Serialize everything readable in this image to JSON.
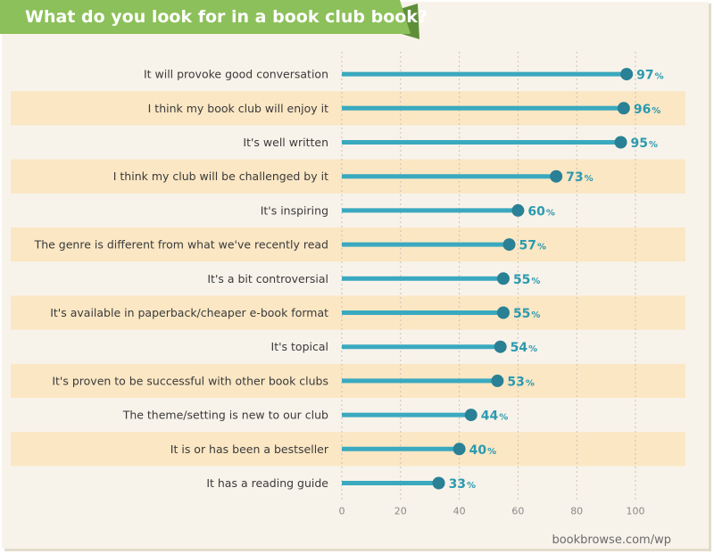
{
  "colors": {
    "background": "#f8f3ea",
    "row_band": "#fbe7c4",
    "banner": "#8cc05a",
    "banner_dark": "#5e8f38",
    "bar": "#3aa9bf",
    "dot": "#2a8094",
    "label_text": "#3a3a3a",
    "value_text": "#2b9ab0"
  },
  "chart_data": {
    "type": "bar",
    "orientation": "horizontal",
    "title": "What do you look for in a book club book?",
    "source": "bookbrowse.com/wp",
    "categories": [
      "It will provoke good conversation",
      "I think my book club will enjoy it",
      "It's well written",
      "I think my club will be challenged by it",
      "It's inspiring",
      "The genre is different from what we've recently read",
      "It's a bit controversial",
      "It's available in paperback/cheaper e-book format",
      "It's topical",
      "It's proven to be successful with other book clubs",
      "The theme/setting is new to our club",
      "It is or has been a bestseller",
      "It has a reading guide"
    ],
    "values": [
      97,
      96,
      95,
      73,
      60,
      57,
      55,
      55,
      54,
      53,
      44,
      40,
      33
    ],
    "value_suffix": "%",
    "xlim": [
      0,
      100
    ],
    "xticks": [
      0,
      20,
      40,
      60,
      80,
      100
    ],
    "grid": true,
    "legend": "none"
  }
}
